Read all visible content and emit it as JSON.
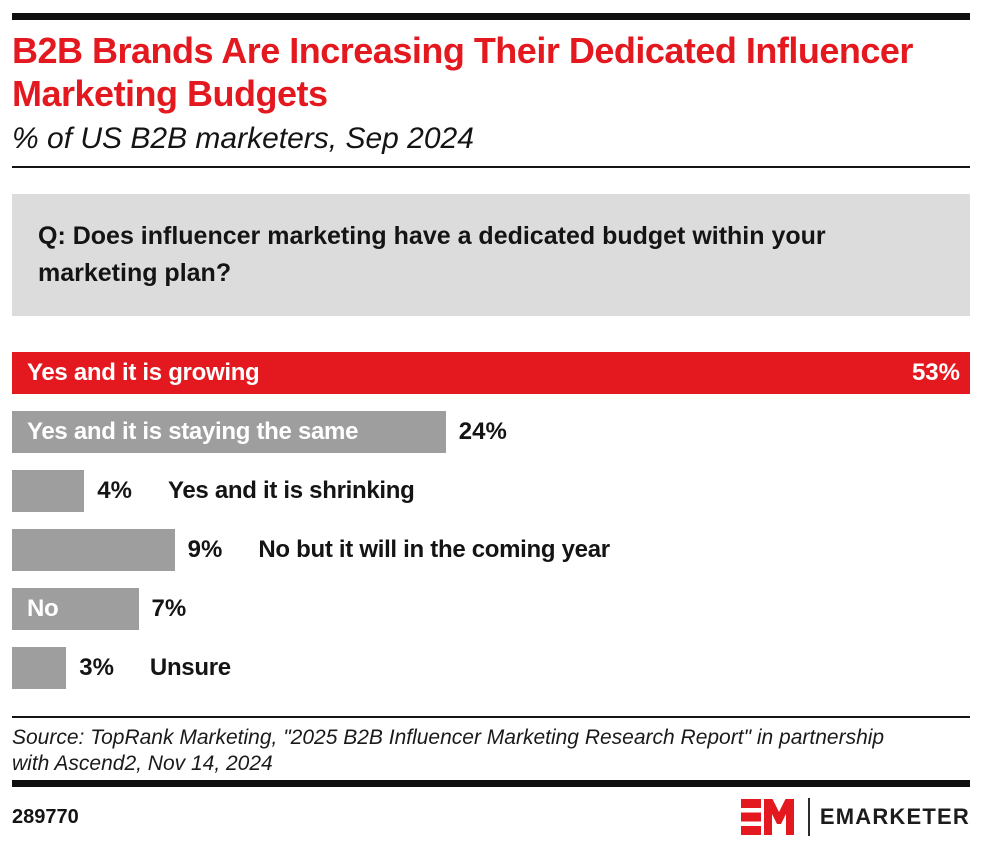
{
  "header": {
    "title": "B2B Brands Are Increasing Their Dedicated Influencer Marketing Budgets",
    "subtitle": "% of US B2B marketers, Sep 2024"
  },
  "question": {
    "text": "Q: Does influencer marketing have a dedicated budget within your marketing plan?"
  },
  "chart_data": {
    "type": "bar",
    "orientation": "horizontal",
    "unit": "%",
    "title": "B2B Brands Are Increasing Their Dedicated Influencer Marketing Budgets",
    "subtitle": "% of US B2B marketers, Sep 2024",
    "categories": [
      "Yes and it is growing",
      "Yes and it is staying the same",
      "Yes and it is shrinking",
      "No but it will in the coming year",
      "No",
      "Unsure"
    ],
    "values": [
      53,
      24,
      4,
      9,
      7,
      3
    ],
    "xlim": [
      0,
      53
    ],
    "grid": false,
    "legend": false,
    "bars": [
      {
        "label": "Yes and it is growing",
        "value": 53,
        "value_label": "53%",
        "color": "#e4191f",
        "label_position": "inside",
        "value_position": "inside"
      },
      {
        "label": "Yes and it is staying the same",
        "value": 24,
        "value_label": "24%",
        "color": "#9e9e9e",
        "label_position": "inside",
        "value_position": "outside"
      },
      {
        "label": "Yes and it is shrinking",
        "value": 4,
        "value_label": "4%",
        "color": "#9e9e9e",
        "label_position": "outside",
        "value_position": "outside"
      },
      {
        "label": "No but it will in the coming year",
        "value": 9,
        "value_label": "9%",
        "color": "#9e9e9e",
        "label_position": "outside",
        "value_position": "outside"
      },
      {
        "label": "No",
        "value": 7,
        "value_label": "7%",
        "color": "#9e9e9e",
        "label_position": "inside",
        "value_position": "outside"
      },
      {
        "label": "Unsure",
        "value": 3,
        "value_label": "3%",
        "color": "#9e9e9e",
        "label_position": "outside",
        "value_position": "outside"
      }
    ]
  },
  "source": {
    "text": "Source: TopRank Marketing, \"2025 B2B Influencer Marketing Research Report\" in partnership with Ascend2, Nov 14, 2024"
  },
  "footer": {
    "chart_id": "289770",
    "brand": "EMARKETER"
  },
  "colors": {
    "accent_red": "#e4191f",
    "bar_gray": "#9e9e9e",
    "question_bg": "#dcdcdc",
    "rule_black": "#0f0f0f",
    "text_black": "#141414"
  }
}
